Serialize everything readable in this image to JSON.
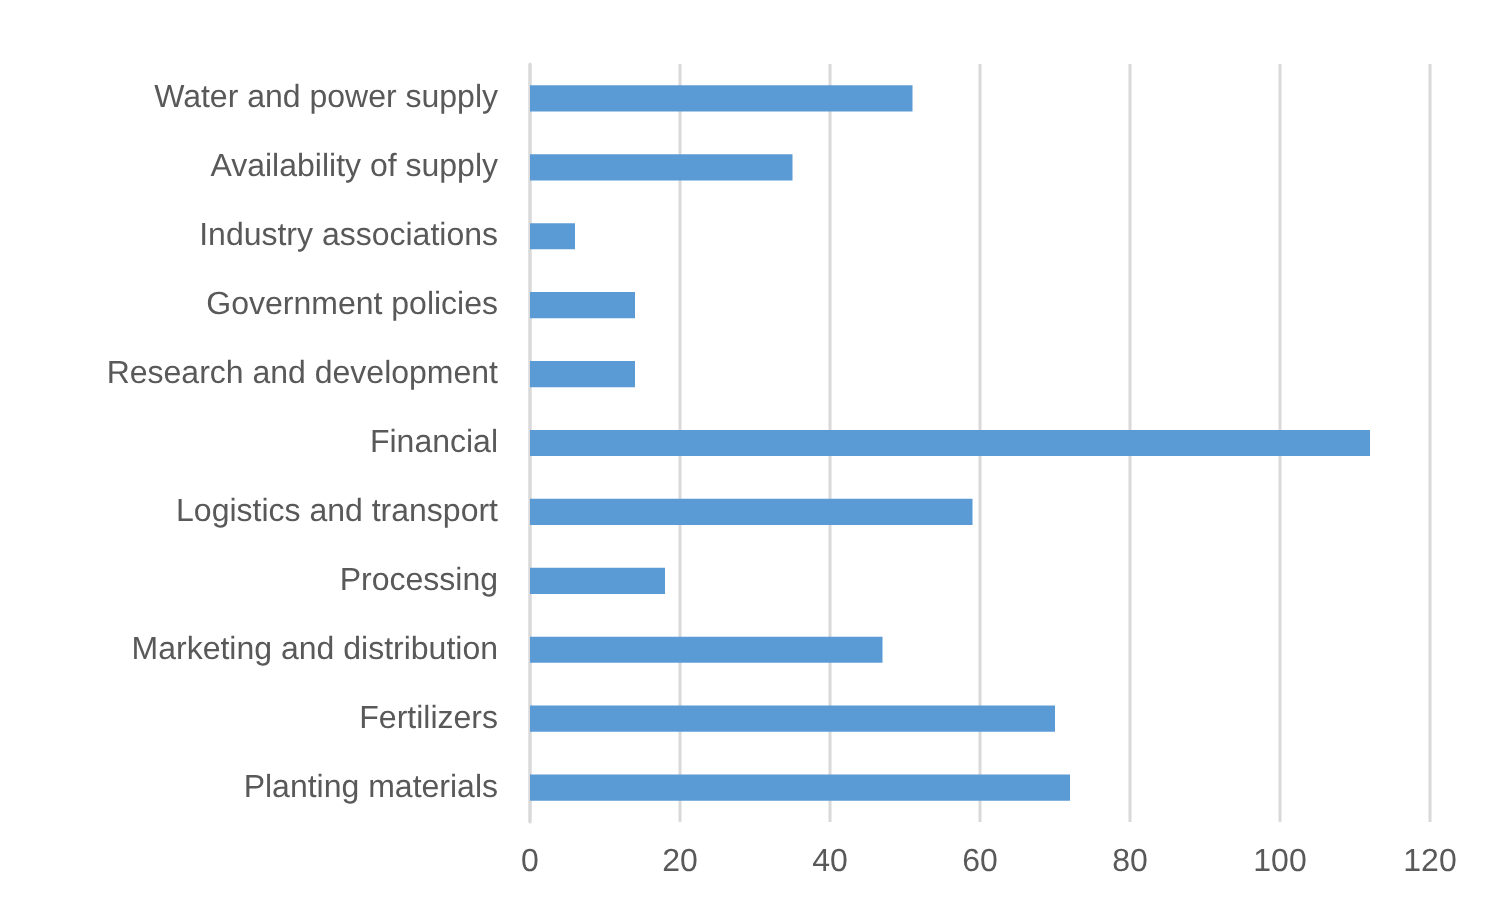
{
  "chart_data": {
    "type": "bar",
    "orientation": "horizontal",
    "categories": [
      "Water and power supply",
      "Availability of supply",
      "Industry associations",
      "Government policies",
      "Research and development",
      "Financial",
      "Logistics and transport",
      "Processing",
      "Marketing and distribution",
      "Fertilizers",
      "Planting materials"
    ],
    "values": [
      51,
      35,
      6,
      14,
      14,
      112,
      59,
      18,
      47,
      70,
      72
    ],
    "color": "#5b9bd5",
    "xlim": [
      0,
      120
    ],
    "xticks": [
      0,
      20,
      40,
      60,
      80,
      100,
      120
    ],
    "grid": "x"
  }
}
